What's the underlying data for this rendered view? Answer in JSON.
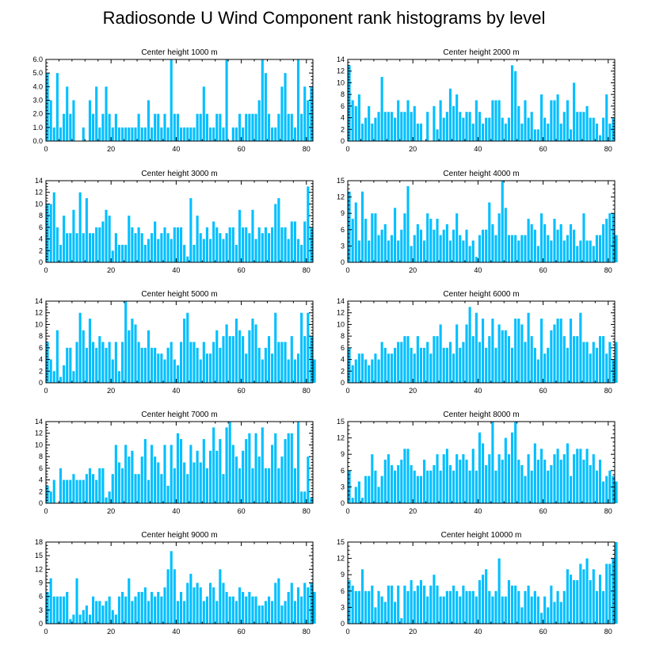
{
  "title": "Radiosonde U Wind Component rank histograms by level",
  "bar_color": "#00bfff",
  "frame_color": "#000000",
  "chart_data": [
    {
      "type": "bar",
      "title": "Center height 1000 m",
      "xlim": [
        0,
        82
      ],
      "xticks": [
        0,
        20,
        40,
        60,
        80
      ],
      "ylim": [
        0,
        6
      ],
      "yticks": [
        0,
        1,
        2,
        3,
        4,
        5,
        6
      ],
      "ytick_labels": [
        "0.0",
        "1.0",
        "2.0",
        "3.0",
        "4.0",
        "5.0",
        "6.0"
      ],
      "values": [
        5,
        3,
        1,
        5,
        1,
        2,
        4,
        2,
        3,
        0,
        0,
        1,
        0,
        3,
        2,
        4,
        1,
        2,
        4,
        2,
        1,
        2,
        1,
        1,
        1,
        1,
        1,
        1,
        2,
        1,
        1,
        3,
        1,
        2,
        2,
        1,
        2,
        1,
        6,
        2,
        2,
        1,
        1,
        1,
        1,
        1,
        2,
        2,
        4,
        2,
        1,
        1,
        2,
        2,
        1,
        6,
        0,
        1,
        1,
        2,
        1,
        2,
        2,
        2,
        2,
        3,
        6,
        5,
        2,
        1,
        1,
        2,
        4,
        5,
        2,
        2,
        1,
        6,
        2,
        4,
        3,
        4
      ]
    },
    {
      "type": "bar",
      "title": "Center height 2000 m",
      "xlim": [
        0,
        82
      ],
      "xticks": [
        0,
        20,
        40,
        60,
        80
      ],
      "ylim": [
        0,
        14
      ],
      "yticks": [
        0,
        2,
        4,
        6,
        8,
        10,
        12,
        14
      ],
      "ytick_labels": [
        "0",
        "2",
        "4",
        "6",
        "8",
        "10",
        "12",
        "14"
      ],
      "values": [
        13,
        7,
        6,
        8,
        3,
        4,
        6,
        3,
        4,
        5,
        11,
        5,
        5,
        5,
        4,
        7,
        5,
        5,
        7,
        5,
        6,
        3,
        3,
        0,
        5,
        0,
        6,
        2,
        7,
        4,
        5,
        9,
        6,
        8,
        5,
        4,
        5,
        5,
        3,
        7,
        5,
        3,
        4,
        4,
        7,
        7,
        7,
        4,
        3,
        4,
        13,
        12,
        6,
        3,
        7,
        4,
        5,
        2,
        2,
        8,
        4,
        3,
        7,
        7,
        8,
        3,
        5,
        7,
        2,
        10,
        5,
        5,
        5,
        6,
        4,
        4,
        3,
        1,
        4,
        8,
        3,
        4
      ]
    },
    {
      "type": "bar",
      "title": "Center height 3000 m",
      "xlim": [
        0,
        82
      ],
      "xticks": [
        0,
        20,
        40,
        60,
        80
      ],
      "ylim": [
        0,
        14
      ],
      "yticks": [
        0,
        2,
        4,
        6,
        8,
        10,
        12,
        14
      ],
      "ytick_labels": [
        "0",
        "2",
        "4",
        "6",
        "8",
        "10",
        "12",
        "14"
      ],
      "values": [
        10,
        10,
        12,
        6,
        3,
        8,
        5,
        5,
        9,
        5,
        12,
        5,
        11,
        5,
        5,
        6,
        6,
        7,
        9,
        8,
        2,
        5,
        3,
        3,
        3,
        8,
        6,
        5,
        6,
        5,
        3,
        4,
        5,
        7,
        4,
        5,
        6,
        5,
        4,
        6,
        6,
        6,
        3,
        1,
        11,
        3,
        8,
        5,
        4,
        6,
        4,
        7,
        6,
        5,
        4,
        5,
        6,
        6,
        3,
        9,
        6,
        6,
        5,
        9,
        4,
        6,
        5,
        6,
        5,
        6,
        10,
        11,
        6,
        6,
        4,
        7,
        7,
        4,
        3,
        7,
        13,
        6
      ]
    },
    {
      "type": "bar",
      "title": "Center height 4000 m",
      "xlim": [
        0,
        82
      ],
      "xticks": [
        0,
        20,
        40,
        60,
        80
      ],
      "ylim": [
        0,
        15
      ],
      "yticks": [
        0,
        3,
        6,
        9,
        12,
        15
      ],
      "ytick_labels": [
        "0",
        "3",
        "6",
        "9",
        "12",
        "15"
      ],
      "values": [
        13,
        8,
        11,
        4,
        13,
        8,
        4,
        9,
        9,
        5,
        6,
        7,
        4,
        5,
        10,
        4,
        6,
        9,
        14,
        3,
        5,
        7,
        6,
        4,
        9,
        8,
        6,
        8,
        5,
        6,
        7,
        4,
        6,
        9,
        5,
        4,
        6,
        3,
        4,
        1,
        5,
        6,
        6,
        11,
        7,
        5,
        9,
        15,
        10,
        5,
        5,
        5,
        4,
        5,
        5,
        8,
        7,
        6,
        3,
        9,
        7,
        5,
        4,
        8,
        6,
        7,
        4,
        5,
        7,
        6,
        3,
        4,
        9,
        4,
        4,
        3,
        5,
        5,
        7,
        8,
        9,
        9,
        5
      ]
    },
    {
      "type": "bar",
      "title": "Center height 5000 m",
      "xlim": [
        0,
        82
      ],
      "xticks": [
        0,
        20,
        40,
        60,
        80
      ],
      "ylim": [
        0,
        14
      ],
      "yticks": [
        0,
        2,
        4,
        6,
        8,
        10,
        12,
        14
      ],
      "ytick_labels": [
        "0",
        "2",
        "4",
        "6",
        "8",
        "10",
        "12",
        "14"
      ],
      "values": [
        7,
        4,
        2,
        9,
        1,
        3,
        6,
        6,
        2,
        7,
        12,
        9,
        6,
        11,
        7,
        6,
        8,
        7,
        6,
        7,
        4,
        7,
        2,
        7,
        14,
        9,
        11,
        10,
        7,
        6,
        6,
        9,
        6,
        6,
        5,
        5,
        4,
        6,
        7,
        4,
        3,
        7,
        11,
        12,
        7,
        7,
        6,
        4,
        7,
        5,
        5,
        7,
        9,
        6,
        8,
        10,
        8,
        8,
        11,
        9,
        8,
        5,
        9,
        11,
        10,
        6,
        4,
        6,
        8,
        5,
        12,
        7,
        7,
        7,
        4,
        8,
        4,
        5,
        12,
        8,
        12,
        8,
        4
      ]
    },
    {
      "type": "bar",
      "title": "Center height 6000 m",
      "xlim": [
        0,
        82
      ],
      "xticks": [
        0,
        20,
        40,
        60,
        80
      ],
      "ylim": [
        0,
        14
      ],
      "yticks": [
        0,
        2,
        4,
        6,
        8,
        10,
        12,
        14
      ],
      "ytick_labels": [
        "0",
        "2",
        "4",
        "6",
        "8",
        "10",
        "12",
        "14"
      ],
      "values": [
        6,
        3,
        4,
        5,
        5,
        4,
        3,
        4,
        5,
        4,
        7,
        6,
        5,
        5,
        6,
        7,
        7,
        8,
        8,
        6,
        5,
        8,
        6,
        6,
        7,
        5,
        8,
        8,
        10,
        6,
        6,
        7,
        5,
        10,
        6,
        7,
        10,
        13,
        8,
        12,
        7,
        11,
        6,
        8,
        11,
        6,
        10,
        9,
        9,
        8,
        6,
        11,
        11,
        10,
        7,
        12,
        8,
        6,
        4,
        11,
        5,
        6,
        9,
        10,
        11,
        11,
        8,
        6,
        11,
        8,
        8,
        12,
        7,
        7,
        5,
        7,
        6,
        8,
        8,
        5,
        7,
        4,
        7
      ]
    },
    {
      "type": "bar",
      "title": "Center height 7000 m",
      "xlim": [
        0,
        82
      ],
      "xticks": [
        0,
        20,
        40,
        60,
        80
      ],
      "ylim": [
        0,
        14
      ],
      "yticks": [
        0,
        2,
        4,
        6,
        8,
        10,
        12,
        14
      ],
      "ytick_labels": [
        "0",
        "2",
        "4",
        "6",
        "8",
        "10",
        "12",
        "14"
      ],
      "values": [
        3,
        2,
        4,
        0,
        6,
        4,
        4,
        4,
        5,
        4,
        4,
        4,
        5,
        6,
        5,
        4,
        6,
        6,
        1,
        2,
        5,
        10,
        7,
        6,
        10,
        8,
        9,
        5,
        5,
        8,
        11,
        4,
        10,
        8,
        7,
        5,
        10,
        3,
        10,
        6,
        12,
        11,
        7,
        5,
        10,
        7,
        9,
        7,
        11,
        6,
        9,
        13,
        9,
        11,
        5,
        13,
        14,
        10,
        8,
        6,
        9,
        11,
        12,
        6,
        12,
        8,
        13,
        6,
        6,
        10,
        12,
        6,
        8,
        11,
        12,
        12,
        6,
        14,
        2,
        2,
        8,
        1
      ]
    },
    {
      "type": "bar",
      "title": "Center height 8000 m",
      "xlim": [
        0,
        82
      ],
      "xticks": [
        0,
        20,
        40,
        60,
        80
      ],
      "ylim": [
        0,
        15
      ],
      "yticks": [
        0,
        3,
        6,
        9,
        12,
        15
      ],
      "ytick_labels": [
        "0",
        "3",
        "6",
        "9",
        "12",
        "15"
      ],
      "values": [
        6,
        1,
        3,
        4,
        1,
        5,
        5,
        9,
        6,
        3,
        5,
        8,
        9,
        7,
        6,
        7,
        8,
        10,
        10,
        7,
        6,
        5,
        5,
        8,
        6,
        6,
        7,
        9,
        6,
        9,
        10,
        7,
        6,
        9,
        8,
        9,
        8,
        6,
        10,
        6,
        13,
        11,
        7,
        9,
        15,
        6,
        9,
        8,
        12,
        9,
        13,
        15,
        8,
        7,
        5,
        9,
        6,
        11,
        8,
        10,
        8,
        6,
        7,
        9,
        10,
        8,
        9,
        11,
        5,
        9,
        10,
        10,
        8,
        10,
        7,
        9,
        6,
        8,
        4,
        5,
        6,
        5,
        4
      ]
    },
    {
      "type": "bar",
      "title": "Center height 9000 m",
      "xlim": [
        0,
        82
      ],
      "xticks": [
        0,
        20,
        40,
        60,
        80
      ],
      "ylim": [
        0,
        18
      ],
      "yticks": [
        0,
        3,
        6,
        9,
        12,
        15,
        18
      ],
      "ytick_labels": [
        "0",
        "3",
        "6",
        "9",
        "12",
        "15",
        "18"
      ],
      "values": [
        7,
        10,
        6,
        6,
        6,
        6,
        7,
        1,
        2,
        10,
        2,
        3,
        4,
        2,
        6,
        5,
        5,
        4,
        5,
        6,
        3,
        2,
        6,
        7,
        6,
        10,
        5,
        6,
        7,
        7,
        8,
        5,
        7,
        6,
        7,
        6,
        8,
        12,
        16,
        12,
        5,
        7,
        5,
        9,
        11,
        8,
        9,
        8,
        5,
        6,
        9,
        8,
        5,
        12,
        9,
        7,
        6,
        6,
        5,
        8,
        7,
        6,
        7,
        6,
        6,
        4,
        4,
        5,
        6,
        5,
        9,
        10,
        4,
        5,
        7,
        9,
        5,
        8,
        6,
        9,
        8,
        9,
        7
      ]
    },
    {
      "type": "bar",
      "title": "Center height 10000 m",
      "xlim": [
        0,
        82
      ],
      "xticks": [
        0,
        20,
        40,
        60,
        80
      ],
      "ylim": [
        0,
        15
      ],
      "yticks": [
        0,
        3,
        6,
        9,
        12,
        15
      ],
      "ytick_labels": [
        "0",
        "3",
        "6",
        "9",
        "12",
        "15"
      ],
      "values": [
        8,
        7,
        6,
        6,
        10,
        6,
        6,
        7,
        3,
        6,
        5,
        4,
        7,
        7,
        4,
        7,
        1,
        7,
        6,
        8,
        6,
        7,
        8,
        7,
        5,
        7,
        9,
        7,
        5,
        5,
        6,
        6,
        7,
        6,
        5,
        7,
        6,
        6,
        6,
        5,
        8,
        9,
        10,
        6,
        5,
        6,
        12,
        5,
        5,
        8,
        7,
        7,
        6,
        3,
        6,
        7,
        5,
        6,
        5,
        2,
        5,
        3,
        7,
        4,
        6,
        4,
        6,
        10,
        9,
        8,
        8,
        11,
        10,
        12,
        8,
        10,
        6,
        9,
        6,
        11,
        11,
        12,
        15
      ]
    }
  ]
}
